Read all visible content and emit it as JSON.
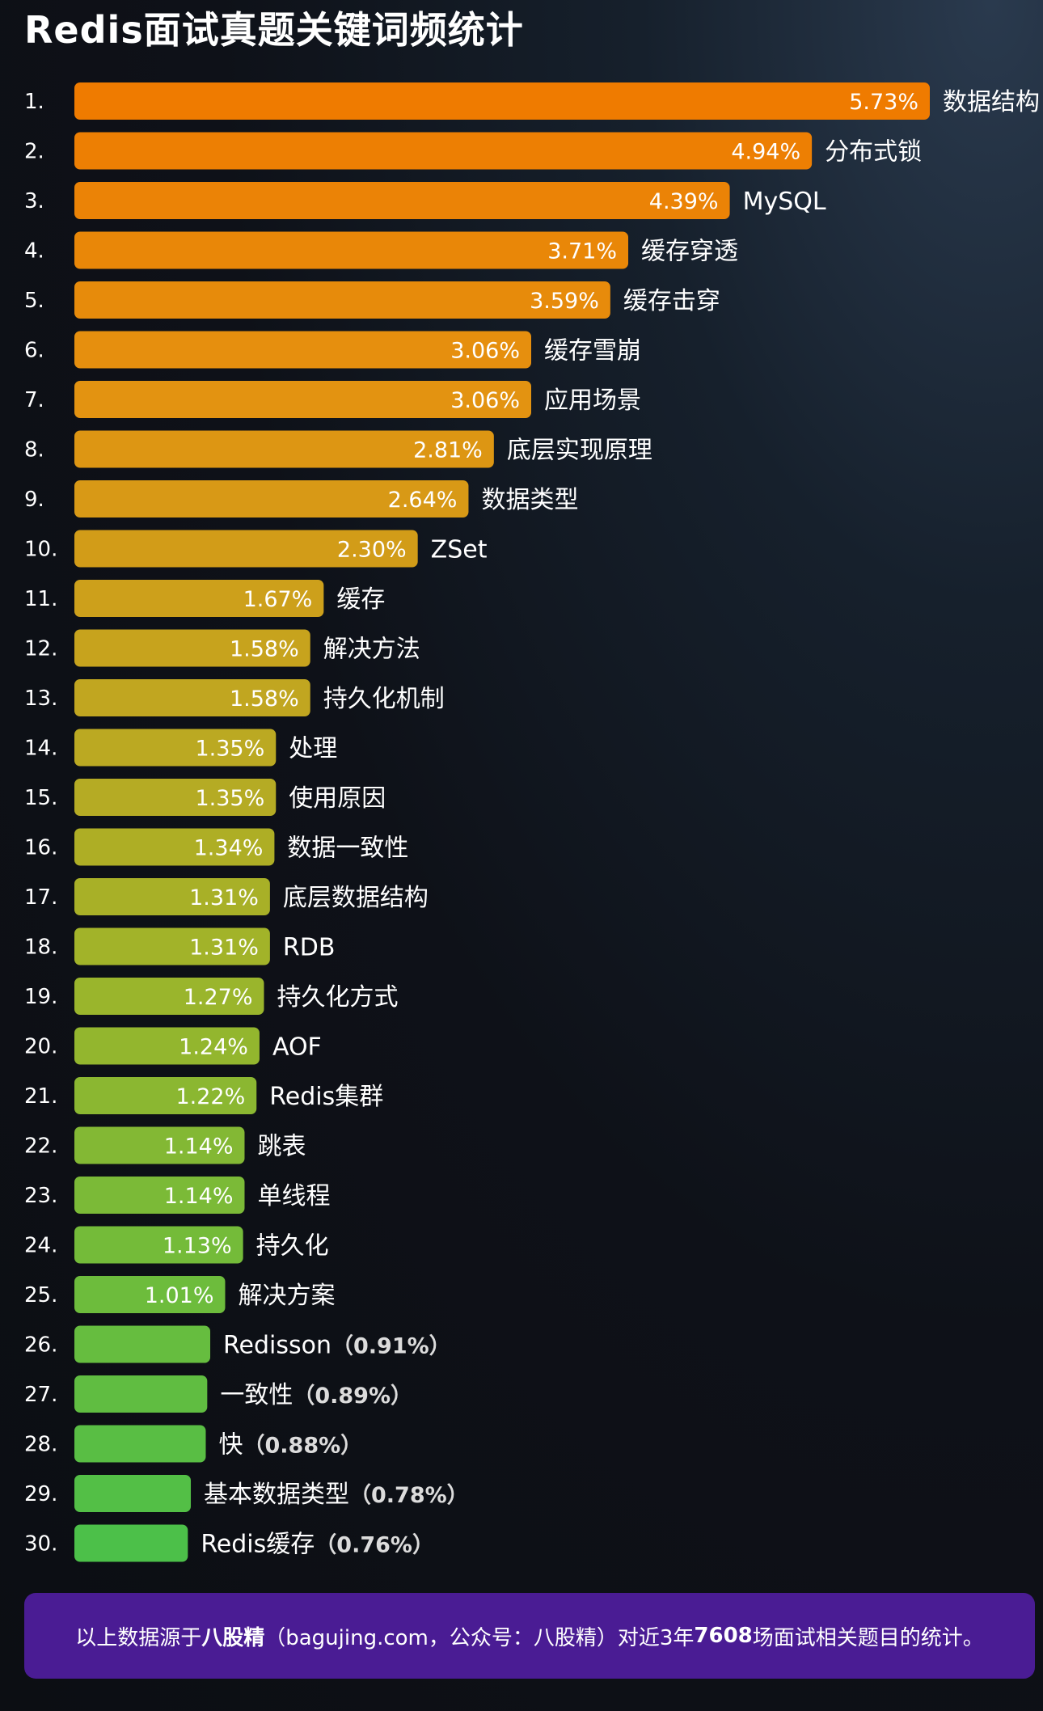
{
  "title": "Redis面试真题关键词频统计",
  "chart_data": {
    "type": "bar",
    "orientation": "horizontal",
    "title": "Redis面试真题关键词频统计",
    "unit": "%",
    "xlim": [
      0,
      5.73
    ],
    "grid": false,
    "color_gradient": [
      "#ef7b00",
      "#e49210",
      "#c4a51f",
      "#9fb42a",
      "#72bb3a",
      "#4cc049"
    ],
    "ranks": [
      "1.",
      "2.",
      "3.",
      "4.",
      "5.",
      "6.",
      "7.",
      "8.",
      "9.",
      "10.",
      "11.",
      "12.",
      "13.",
      "14.",
      "15.",
      "16.",
      "17.",
      "18.",
      "19.",
      "20.",
      "21.",
      "22.",
      "23.",
      "24.",
      "25.",
      "26.",
      "27.",
      "28.",
      "29.",
      "30."
    ],
    "categories": [
      "数据结构",
      "分布式锁",
      "MySQL",
      "缓存穿透",
      "缓存击穿",
      "缓存雪崩",
      "应用场景",
      "底层实现原理",
      "数据类型",
      "ZSet",
      "缓存",
      "解决方法",
      "持久化机制",
      "处理",
      "使用原因",
      "数据一致性",
      "底层数据结构",
      "RDB",
      "持久化方式",
      "AOF",
      "Redis集群",
      "跳表",
      "单线程",
      "持久化",
      "解决方案",
      "Redisson",
      "一致性",
      "快",
      "基本数据类型",
      "Redis缓存"
    ],
    "values": [
      5.73,
      4.94,
      4.39,
      3.71,
      3.59,
      3.06,
      3.06,
      2.81,
      2.64,
      2.3,
      1.67,
      1.58,
      1.58,
      1.35,
      1.35,
      1.34,
      1.31,
      1.31,
      1.27,
      1.24,
      1.22,
      1.14,
      1.14,
      1.13,
      1.01,
      0.91,
      0.89,
      0.88,
      0.78,
      0.76
    ],
    "value_labels": [
      "5.73%",
      "4.94%",
      "4.39%",
      "3.71%",
      "3.59%",
      "3.06%",
      "3.06%",
      "2.81%",
      "2.64%",
      "2.30%",
      "1.67%",
      "1.58%",
      "1.58%",
      "1.35%",
      "1.35%",
      "1.34%",
      "1.31%",
      "1.31%",
      "1.27%",
      "1.24%",
      "1.22%",
      "1.14%",
      "1.14%",
      "1.13%",
      "1.01%",
      "（0.91%）",
      "（0.89%）",
      "（0.88%）",
      "（0.78%）",
      "（0.76%）"
    ]
  },
  "footer": {
    "prefix": "以上数据源于",
    "brand": "八股精",
    "middle": "（bagujing.com，公众号：八股精）对近3年",
    "count": "7608",
    "suffix": "场面试相关题目的统计。"
  }
}
